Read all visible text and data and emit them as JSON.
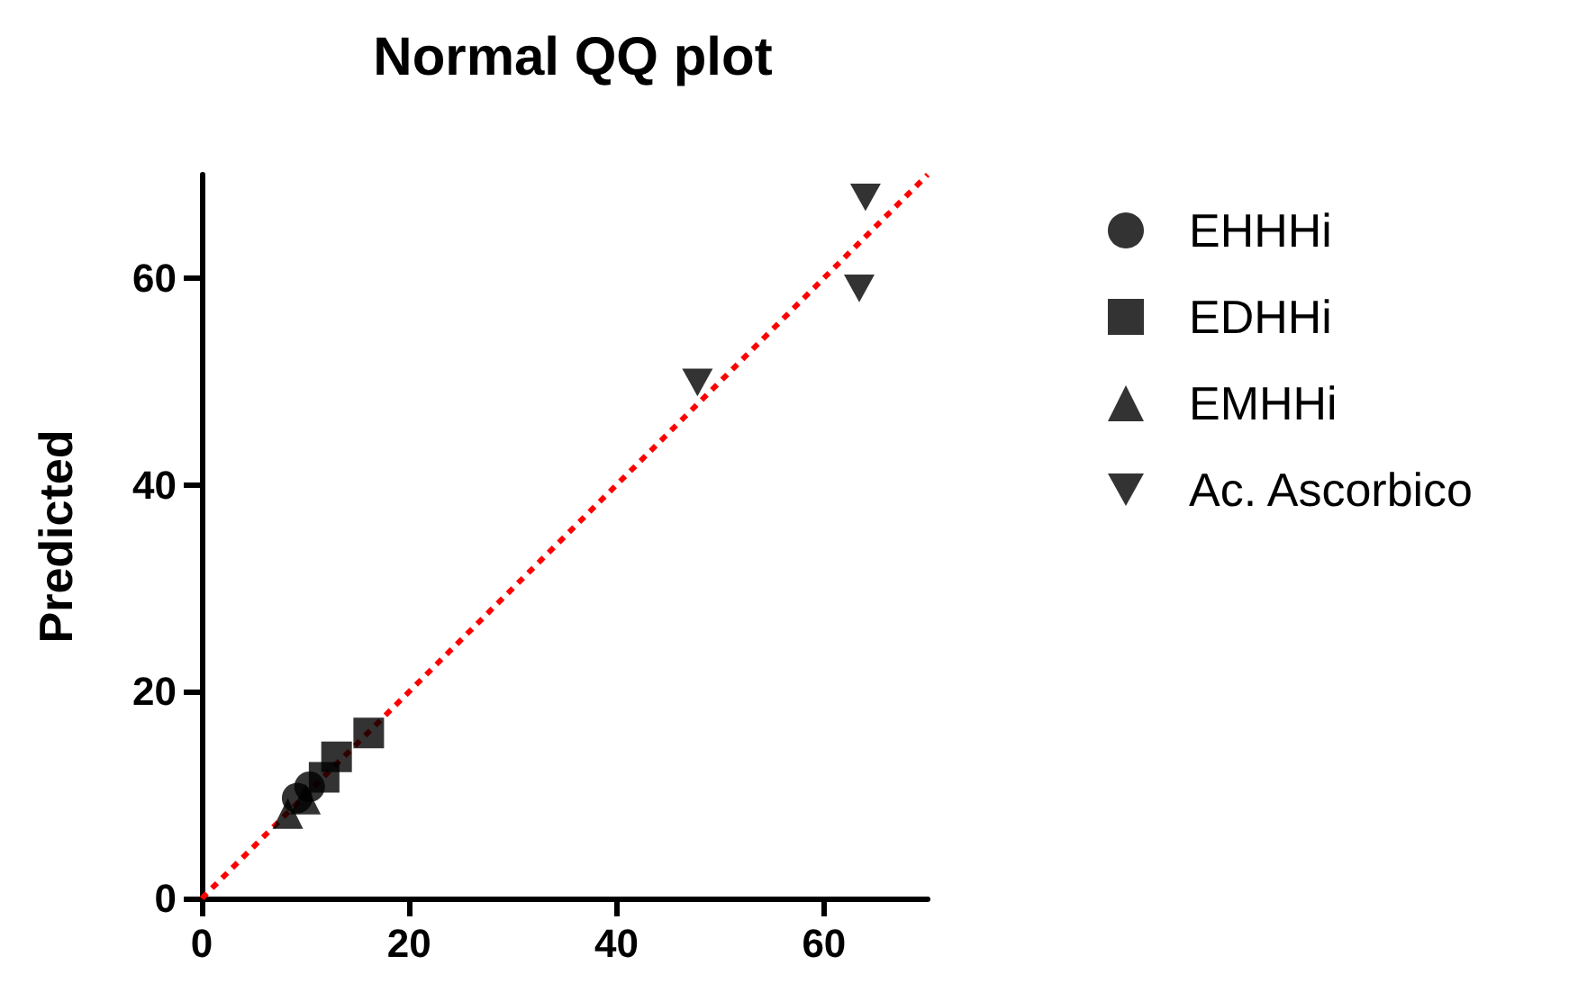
{
  "chart_data": {
    "type": "scatter",
    "title": "Normal QQ plot",
    "ylabel": "Predicted",
    "xlim": [
      0,
      70
    ],
    "xticks": [
      0,
      20,
      40,
      60
    ],
    "ylim": [
      0,
      70
    ],
    "yticks": [
      0,
      20,
      40,
      60
    ],
    "grid": false,
    "legend": "right",
    "series": [
      {
        "name": "EHHHi",
        "color": "#000000",
        "marker": "circle",
        "x": [
          9.2,
          10.4
        ],
        "values": [
          9.7,
          10.8
        ]
      },
      {
        "name": "EDHHi",
        "color": "#000000",
        "marker": "square",
        "x": [
          11.8,
          13,
          16.1
        ],
        "values": [
          11.7,
          13.7,
          16
        ]
      },
      {
        "name": "EMHHi",
        "color": "#000000",
        "marker": "triangle",
        "x": [
          8.3,
          10
        ],
        "values": [
          8.2,
          9.6
        ]
      },
      {
        "name": "Ac. Ascorbico",
        "color": "#000000",
        "marker": "triangle-down",
        "x": [
          47.8,
          63.4,
          64
        ],
        "values": [
          49.9,
          59,
          67.8
        ]
      },
      {
        "type": "line",
        "color": "#ff0000",
        "line_style": "dashed",
        "marker": "none",
        "x": [
          0,
          70
        ],
        "values": [
          0,
          70
        ]
      }
    ]
  }
}
